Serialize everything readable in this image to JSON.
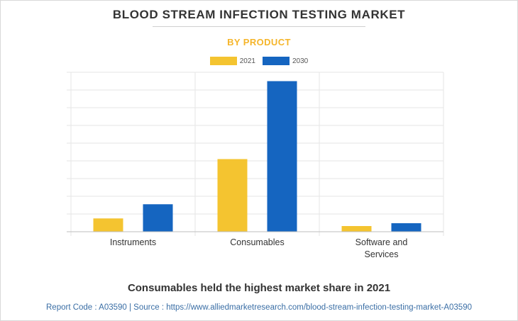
{
  "header": {
    "title": "BLOOD STREAM INFECTION TESTING MARKET",
    "subtitle": "BY PRODUCT"
  },
  "footer": {
    "headline": "Consumables held the highest market share in 2021",
    "source": "Report Code : A03590  |  Source : https://www.alliedmarketresearch.com/blood-stream-infection-testing-market-A03590"
  },
  "chart_data": {
    "type": "bar",
    "categories": [
      "Instruments",
      "Consumables",
      "Software and Services"
    ],
    "category_lines": [
      [
        "Instruments"
      ],
      [
        "Consumables"
      ],
      [
        "Software and",
        "Services"
      ]
    ],
    "series": [
      {
        "name": "2021",
        "values": [
          0.75,
          4.1,
          0.32
        ],
        "color": "#f4c430"
      },
      {
        "name": "2030",
        "values": [
          1.55,
          8.5,
          0.48
        ],
        "color": "#1565c0"
      }
    ],
    "ylim": [
      0,
      9
    ],
    "grid": true,
    "legend": "top-center",
    "xlabel": "",
    "ylabel": ""
  }
}
